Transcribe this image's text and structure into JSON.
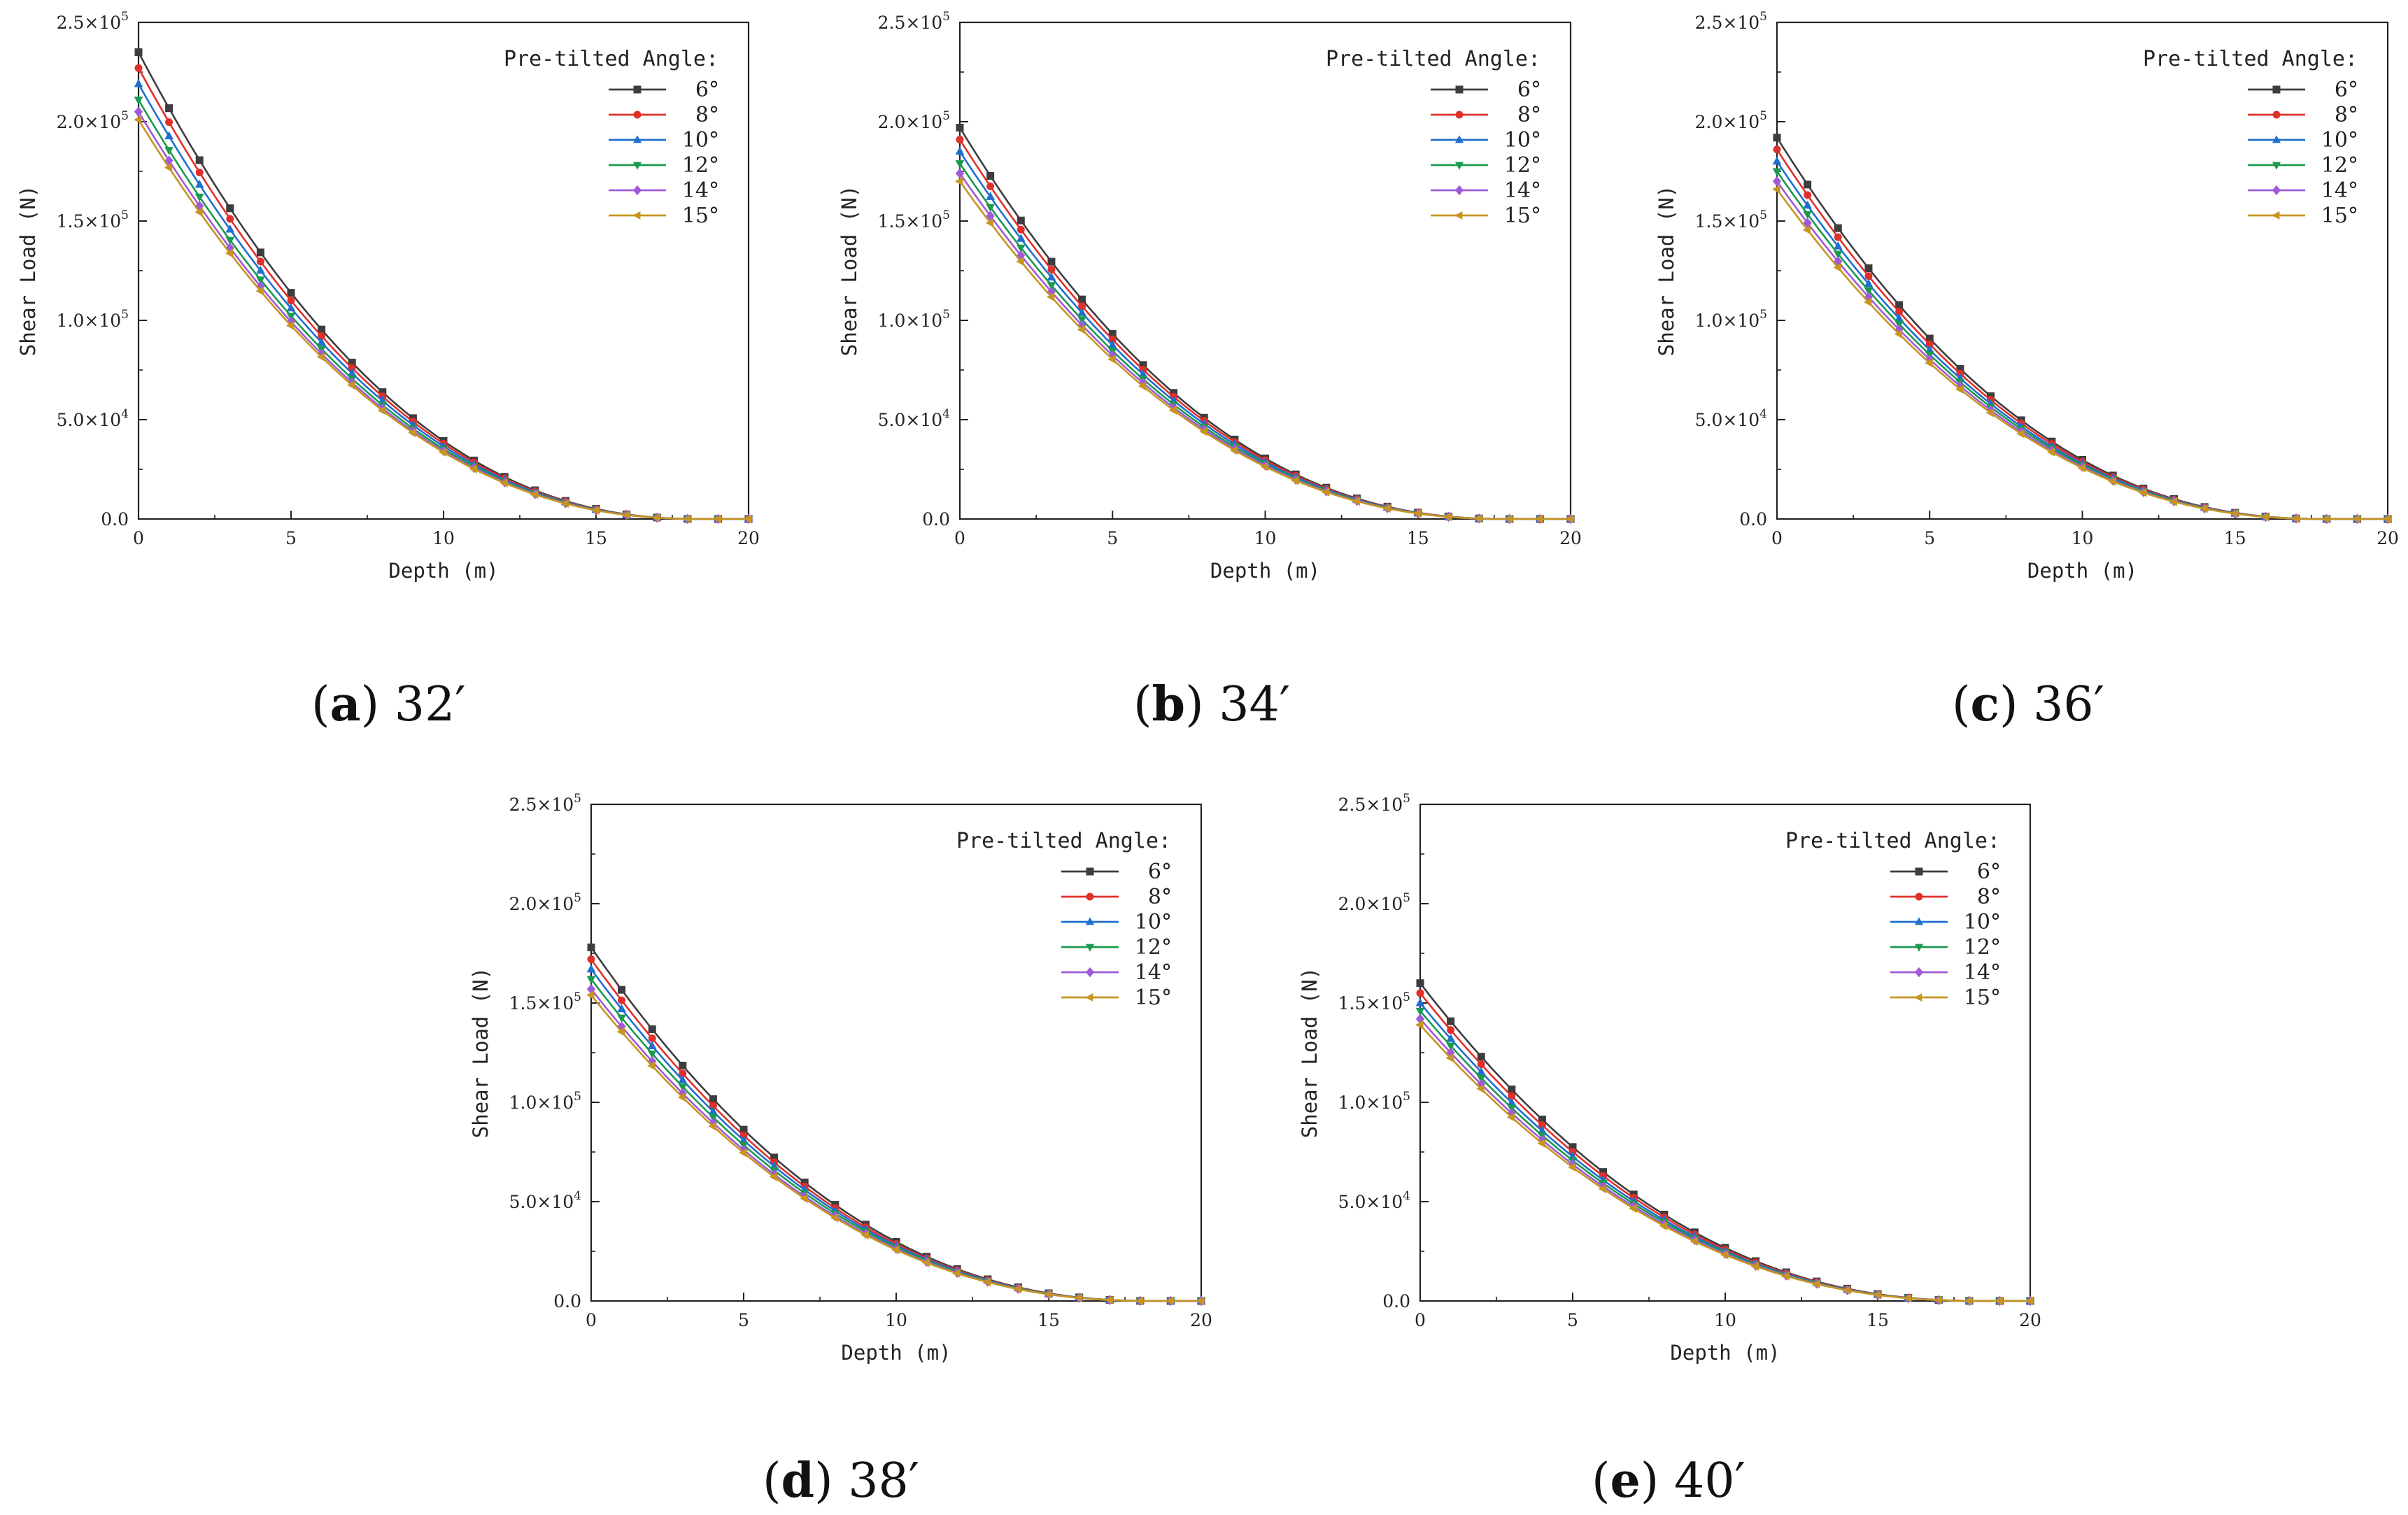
{
  "figure": {
    "legend_title": "Pre-tilted Angle:",
    "ylabel": "Shear Load (N)",
    "xlabel": "Depth (m)"
  },
  "series_styles": [
    {
      "name": "6°",
      "color": "#3d3d3d",
      "marker": "square"
    },
    {
      "name": "8°",
      "color": "#e0302c",
      "marker": "circle"
    },
    {
      "name": "10°",
      "color": "#1f6fd1",
      "marker": "triangle-up"
    },
    {
      "name": "12°",
      "color": "#1a9a4f",
      "marker": "triangle-down"
    },
    {
      "name": "14°",
      "color": "#a05ad8",
      "marker": "diamond"
    },
    {
      "name": "15°",
      "color": "#c79520",
      "marker": "triangle-left"
    }
  ],
  "y_tick_labels": [
    {
      "mantissa": "0.0",
      "exp": ""
    },
    {
      "mantissa": "5.0×10",
      "exp": "4"
    },
    {
      "mantissa": "1.0×10",
      "exp": "5"
    },
    {
      "mantissa": "1.5×10",
      "exp": "5"
    },
    {
      "mantissa": "2.0×10",
      "exp": "5"
    },
    {
      "mantissa": "2.5×10",
      "exp": "5"
    }
  ],
  "chart_data": [
    {
      "type": "line",
      "caption_letter": "a",
      "caption_value": "32′",
      "xlabel": "Depth (m)",
      "ylabel": "Shear Load (N)",
      "xlim": [
        0,
        20
      ],
      "ylim": [
        0,
        250000
      ],
      "xticks": [
        0,
        5,
        10,
        15,
        20
      ],
      "yticks": [
        0,
        50000,
        100000,
        150000,
        200000,
        250000
      ],
      "legend_title": "Pre-tilted Angle:",
      "legend_position": "top-right",
      "x": [
        0,
        1,
        2,
        3,
        4,
        5,
        6,
        7,
        8,
        9,
        10,
        11,
        12,
        13,
        14,
        15,
        16,
        17,
        18,
        19,
        20
      ],
      "end_depth": 18.5,
      "series": [
        {
          "name": "6°",
          "y0": 235000
        },
        {
          "name": "8°",
          "y0": 227000
        },
        {
          "name": "10°",
          "y0": 219000
        },
        {
          "name": "12°",
          "y0": 211000
        },
        {
          "name": "14°",
          "y0": 205000
        },
        {
          "name": "15°",
          "y0": 201000
        }
      ]
    },
    {
      "type": "line",
      "caption_letter": "b",
      "caption_value": "34′",
      "xlabel": "Depth (m)",
      "ylabel": "Shear Load (N)",
      "xlim": [
        0,
        20
      ],
      "ylim": [
        0,
        250000
      ],
      "xticks": [
        0,
        5,
        10,
        15,
        20
      ],
      "yticks": [
        0,
        50000,
        100000,
        150000,
        200000,
        250000
      ],
      "legend_title": "Pre-tilted Angle:",
      "legend_position": "top-right",
      "x": [
        0,
        1,
        2,
        3,
        4,
        5,
        6,
        7,
        8,
        9,
        10,
        11,
        12,
        13,
        14,
        15,
        16,
        17,
        18,
        19,
        20
      ],
      "end_depth": 18.0,
      "series": [
        {
          "name": "6°",
          "y0": 197000
        },
        {
          "name": "8°",
          "y0": 191000
        },
        {
          "name": "10°",
          "y0": 185000
        },
        {
          "name": "12°",
          "y0": 179000
        },
        {
          "name": "14°",
          "y0": 174000
        },
        {
          "name": "15°",
          "y0": 170000
        }
      ]
    },
    {
      "type": "line",
      "caption_letter": "c",
      "caption_value": "36′",
      "xlabel": "Depth (m)",
      "ylabel": "Shear Load (N)",
      "xlim": [
        0,
        20
      ],
      "ylim": [
        0,
        250000
      ],
      "xticks": [
        0,
        5,
        10,
        15,
        20
      ],
      "yticks": [
        0,
        50000,
        100000,
        150000,
        200000,
        250000
      ],
      "legend_title": "Pre-tilted Angle:",
      "legend_position": "top-right",
      "x": [
        0,
        1,
        2,
        3,
        4,
        5,
        6,
        7,
        8,
        9,
        10,
        11,
        12,
        13,
        14,
        15,
        16,
        17,
        18,
        19,
        20
      ],
      "end_depth": 18.0,
      "series": [
        {
          "name": "6°",
          "y0": 192000
        },
        {
          "name": "8°",
          "y0": 186000
        },
        {
          "name": "10°",
          "y0": 180000
        },
        {
          "name": "12°",
          "y0": 175000
        },
        {
          "name": "14°",
          "y0": 170000
        },
        {
          "name": "15°",
          "y0": 166000
        }
      ]
    },
    {
      "type": "line",
      "caption_letter": "d",
      "caption_value": "38′",
      "xlabel": "Depth (m)",
      "ylabel": "Shear Load (N)",
      "xlim": [
        0,
        20
      ],
      "ylim": [
        0,
        250000
      ],
      "xticks": [
        0,
        5,
        10,
        15,
        20
      ],
      "yticks": [
        0,
        50000,
        100000,
        150000,
        200000,
        250000
      ],
      "legend_title": "Pre-tilted Angle:",
      "legend_position": "top-right",
      "x": [
        0,
        1,
        2,
        3,
        4,
        5,
        6,
        7,
        8,
        9,
        10,
        11,
        12,
        13,
        14,
        15,
        16,
        17,
        18,
        19,
        20
      ],
      "end_depth": 18.5,
      "series": [
        {
          "name": "6°",
          "y0": 178000
        },
        {
          "name": "8°",
          "y0": 172000
        },
        {
          "name": "10°",
          "y0": 167000
        },
        {
          "name": "12°",
          "y0": 162000
        },
        {
          "name": "14°",
          "y0": 157000
        },
        {
          "name": "15°",
          "y0": 154000
        }
      ]
    },
    {
      "type": "line",
      "caption_letter": "e",
      "caption_value": "40′",
      "xlabel": "Depth (m)",
      "ylabel": "Shear Load (N)",
      "xlim": [
        0,
        20
      ],
      "ylim": [
        0,
        250000
      ],
      "xticks": [
        0,
        5,
        10,
        15,
        20
      ],
      "yticks": [
        0,
        50000,
        100000,
        150000,
        200000,
        250000
      ],
      "legend_title": "Pre-tilted Angle:",
      "legend_position": "top-right",
      "x": [
        0,
        1,
        2,
        3,
        4,
        5,
        6,
        7,
        8,
        9,
        10,
        11,
        12,
        13,
        14,
        15,
        16,
        17,
        18,
        19,
        20
      ],
      "end_depth": 18.5,
      "series": [
        {
          "name": "6°",
          "y0": 160000
        },
        {
          "name": "8°",
          "y0": 155000
        },
        {
          "name": "10°",
          "y0": 150000
        },
        {
          "name": "12°",
          "y0": 146000
        },
        {
          "name": "14°",
          "y0": 142000
        },
        {
          "name": "15°",
          "y0": 139000
        }
      ]
    }
  ]
}
